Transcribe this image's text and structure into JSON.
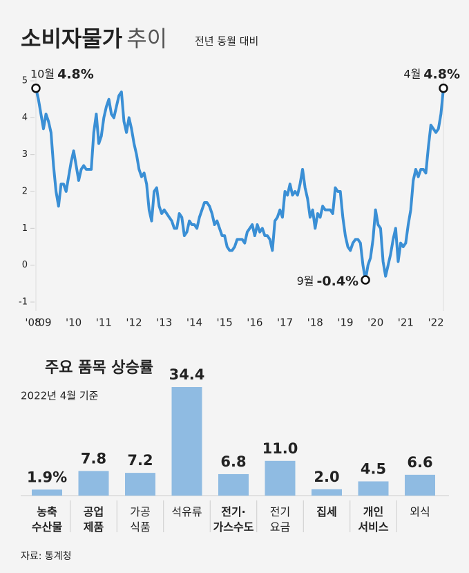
{
  "header": {
    "title": "소비자물가",
    "title_light": "추이",
    "subtitle": "전년 동월 대비"
  },
  "chart_data": [
    {
      "type": "line",
      "categories": [
        "'08",
        null,
        null,
        "'09",
        null,
        null,
        null,
        null,
        null,
        null,
        null,
        null,
        null,
        null,
        null,
        "'10",
        null,
        null,
        null,
        null,
        null,
        null,
        null,
        null,
        null,
        null,
        null,
        "'11",
        null,
        null,
        null,
        null,
        null,
        null,
        null,
        null,
        null,
        null,
        null,
        "'12",
        null,
        null,
        null,
        null,
        null,
        null,
        null,
        null,
        null,
        null,
        null,
        "'13",
        null,
        null,
        null,
        null,
        null,
        null,
        null,
        null,
        null,
        null,
        null,
        "'14",
        null,
        null,
        null,
        null,
        null,
        null,
        null,
        null,
        null,
        null,
        null,
        "'15",
        null,
        null,
        null,
        null,
        null,
        null,
        null,
        null,
        null,
        null,
        null,
        "'16",
        null,
        null,
        null,
        null,
        null,
        null,
        null,
        null,
        null,
        null,
        null,
        "'17",
        null,
        null,
        null,
        null,
        null,
        null,
        null,
        null,
        null,
        null,
        null,
        "'18",
        null,
        null,
        null,
        null,
        null,
        null,
        null,
        null,
        null,
        null,
        null,
        "'19",
        null,
        null,
        null,
        null,
        null,
        null,
        null,
        null,
        null,
        null,
        null,
        "'20",
        null,
        null,
        null,
        null,
        null,
        null,
        null,
        null,
        null,
        null,
        null,
        "'21",
        null,
        null,
        null,
        null,
        null,
        null,
        null,
        null,
        null,
        null,
        null,
        "'22",
        null,
        null,
        null
      ],
      "values": [
        4.8,
        4.5,
        4.1,
        3.7,
        4.1,
        3.9,
        3.6,
        2.7,
        2.0,
        1.6,
        2.2,
        2.2,
        2.0,
        2.4,
        2.8,
        3.1,
        2.7,
        2.3,
        2.6,
        2.7,
        2.6,
        2.6,
        2.6,
        3.6,
        4.1,
        3.3,
        3.5,
        4.0,
        4.3,
        4.5,
        4.1,
        4.0,
        4.3,
        4.6,
        4.7,
        3.9,
        3.6,
        4.0,
        3.7,
        3.3,
        3.0,
        2.6,
        2.4,
        2.5,
        2.2,
        1.5,
        1.2,
        2.0,
        2.1,
        1.6,
        1.4,
        1.5,
        1.4,
        1.3,
        1.2,
        1.0,
        1.0,
        1.4,
        1.3,
        0.8,
        0.9,
        1.2,
        1.1,
        1.1,
        1.0,
        1.3,
        1.5,
        1.7,
        1.7,
        1.6,
        1.4,
        1.1,
        1.2,
        1.0,
        0.8,
        0.8,
        0.5,
        0.4,
        0.4,
        0.5,
        0.7,
        0.7,
        0.7,
        0.6,
        0.9,
        1.0,
        1.1,
        0.8,
        1.1,
        0.9,
        1.0,
        0.8,
        0.8,
        0.7,
        0.4,
        1.2,
        1.3,
        1.5,
        1.3,
        2.0,
        1.9,
        2.2,
        1.9,
        2.0,
        1.9,
        2.2,
        2.6,
        2.1,
        1.8,
        1.3,
        1.5,
        1.0,
        1.4,
        1.3,
        1.6,
        1.5,
        1.5,
        1.5,
        1.4,
        2.1,
        2.0,
        2.0,
        1.3,
        0.8,
        0.5,
        0.4,
        0.6,
        0.7,
        0.7,
        0.6,
        0.0,
        -0.4,
        0.0,
        0.2,
        0.7,
        1.5,
        1.1,
        1.0,
        0.1,
        -0.3,
        0.0,
        0.3,
        0.7,
        1.0,
        0.1,
        0.6,
        0.5,
        0.6,
        1.1,
        1.5,
        2.3,
        2.6,
        2.4,
        2.6,
        2.6,
        2.5,
        3.2,
        3.8,
        3.7,
        3.6,
        3.7,
        4.1,
        4.8
      ],
      "point_labels": {
        "0": "10월",
        "131": "9월",
        "162": "4월"
      },
      "value_labels": {
        "0": "4.8%",
        "131": "-0.4%",
        "162": "4.8%"
      },
      "color": "#3a8fd5",
      "ylim": [
        -1,
        5
      ],
      "yticks": [
        -1,
        0,
        1,
        2,
        3,
        4,
        5
      ]
    },
    {
      "type": "bar",
      "title": "주요 품목 상승률",
      "subtitle": "2022년 4월 기준",
      "categories": [
        "농축\n수산물",
        "공업\n제품",
        "가공\n식품",
        "석유류",
        "전기·\n가스수도",
        "전기\n요금",
        "집세",
        "개인\n서비스",
        "외식"
      ],
      "values": [
        1.9,
        7.8,
        7.2,
        34.4,
        6.8,
        11.0,
        2.0,
        4.5,
        6.6
      ],
      "value_labels": [
        "1.9%",
        "7.8",
        "7.2",
        "34.4",
        "6.8",
        "11.0",
        "2.0",
        "4.5",
        "6.6"
      ],
      "bold_categories": [
        true,
        true,
        false,
        false,
        true,
        false,
        true,
        true,
        false
      ],
      "color": "#8fbbe2"
    }
  ],
  "source": "자료: 통계청"
}
